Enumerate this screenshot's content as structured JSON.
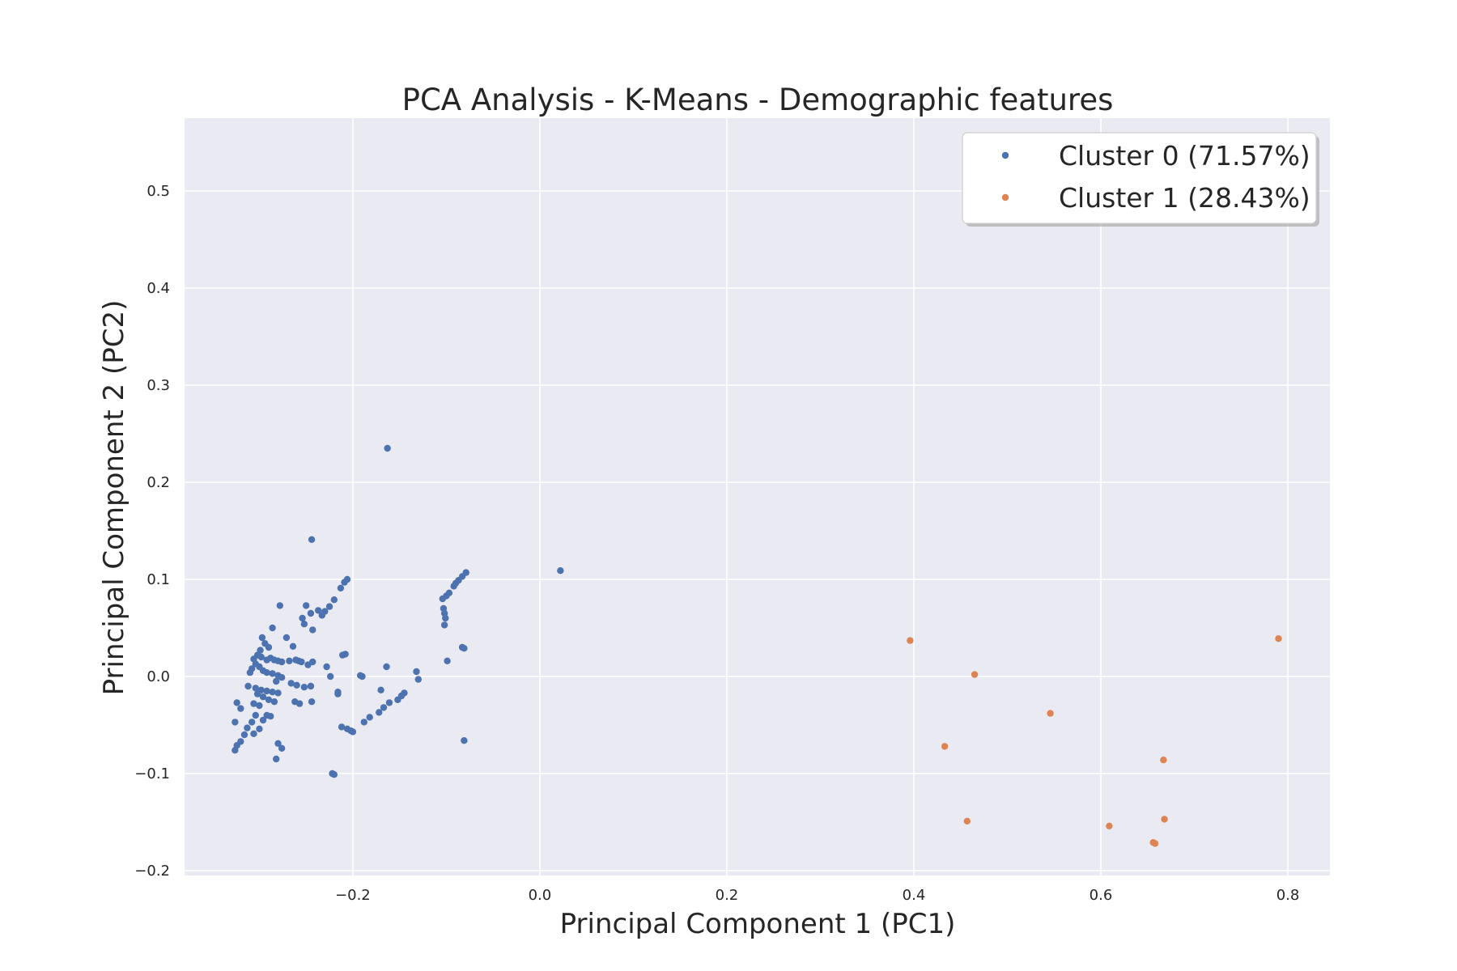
{
  "chart_data": {
    "type": "scatter",
    "title": "PCA Analysis - K-Means - Demographic features",
    "xlabel": "Principal Component 1 (PC1)",
    "ylabel": "Principal Component 2 (PC2)",
    "xlim": [
      -0.38,
      0.845
    ],
    "ylim": [
      -0.205,
      0.575
    ],
    "xticks": [
      -0.2,
      0.0,
      0.2,
      0.4,
      0.6,
      0.8
    ],
    "xtick_labels": [
      "−0.2",
      "0.0",
      "0.2",
      "0.4",
      "0.6",
      "0.8"
    ],
    "yticks": [
      -0.2,
      -0.1,
      0.0,
      0.1,
      0.2,
      0.3,
      0.4,
      0.5
    ],
    "ytick_labels": [
      "−0.2",
      "−0.1",
      "0.0",
      "0.1",
      "0.2",
      "0.3",
      "0.4",
      "0.5"
    ],
    "grid": true,
    "legend_position": "top-right",
    "series": [
      {
        "name": "Cluster 0 (71.57%)",
        "color": "#4c72b0",
        "points": [
          [
            -0.163,
            0.235
          ],
          [
            -0.244,
            0.141
          ],
          [
            0.022,
            0.109
          ],
          [
            -0.206,
            0.1
          ],
          [
            -0.209,
            0.097
          ],
          [
            -0.213,
            0.091
          ],
          [
            -0.22,
            0.079
          ],
          [
            -0.225,
            0.072
          ],
          [
            -0.23,
            0.067
          ],
          [
            -0.233,
            0.063
          ],
          [
            -0.237,
            0.068
          ],
          [
            -0.245,
            0.065
          ],
          [
            -0.25,
            0.073
          ],
          [
            -0.254,
            0.06
          ],
          [
            -0.252,
            0.054
          ],
          [
            -0.243,
            0.048
          ],
          [
            -0.278,
            0.073
          ],
          [
            -0.286,
            0.05
          ],
          [
            -0.271,
            0.04
          ],
          [
            -0.297,
            0.04
          ],
          [
            -0.294,
            0.034
          ],
          [
            -0.29,
            0.03
          ],
          [
            -0.299,
            0.027
          ],
          [
            -0.302,
            0.022
          ],
          [
            -0.298,
            0.02
          ],
          [
            -0.306,
            0.018
          ],
          [
            -0.292,
            0.017
          ],
          [
            -0.288,
            0.019
          ],
          [
            -0.284,
            0.017
          ],
          [
            -0.28,
            0.016
          ],
          [
            -0.276,
            0.015
          ],
          [
            -0.304,
            0.013
          ],
          [
            -0.3,
            0.01
          ],
          [
            -0.308,
            0.008
          ],
          [
            -0.31,
            0.004
          ],
          [
            -0.296,
            0.006
          ],
          [
            -0.292,
            0.004
          ],
          [
            -0.286,
            0.003
          ],
          [
            -0.28,
            0.001
          ],
          [
            -0.276,
            -0.001
          ],
          [
            -0.268,
            0.016
          ],
          [
            -0.261,
            0.017
          ],
          [
            -0.255,
            0.015
          ],
          [
            -0.248,
            0.012
          ],
          [
            -0.243,
            0.015
          ],
          [
            -0.264,
            0.031
          ],
          [
            -0.258,
            0.016
          ],
          [
            -0.282,
            -0.005
          ],
          [
            -0.312,
            -0.01
          ],
          [
            -0.304,
            -0.012
          ],
          [
            -0.298,
            -0.014
          ],
          [
            -0.292,
            -0.015
          ],
          [
            -0.286,
            -0.016
          ],
          [
            -0.28,
            -0.017
          ],
          [
            -0.302,
            -0.018
          ],
          [
            -0.296,
            -0.021
          ],
          [
            -0.29,
            -0.024
          ],
          [
            -0.284,
            -0.026
          ],
          [
            -0.3,
            -0.03
          ],
          [
            -0.306,
            -0.028
          ],
          [
            -0.266,
            -0.007
          ],
          [
            -0.26,
            -0.009
          ],
          [
            -0.252,
            -0.011
          ],
          [
            -0.245,
            -0.01
          ],
          [
            -0.262,
            -0.026
          ],
          [
            -0.257,
            -0.028
          ],
          [
            -0.244,
            -0.026
          ],
          [
            -0.292,
            -0.04
          ],
          [
            -0.296,
            -0.045
          ],
          [
            -0.304,
            -0.04
          ],
          [
            -0.308,
            -0.047
          ],
          [
            -0.313,
            -0.053
          ],
          [
            -0.316,
            -0.06
          ],
          [
            -0.3,
            -0.054
          ],
          [
            -0.288,
            -0.041
          ],
          [
            -0.32,
            -0.033
          ],
          [
            -0.324,
            -0.027
          ],
          [
            -0.326,
            -0.047
          ],
          [
            -0.32,
            -0.067
          ],
          [
            -0.324,
            -0.071
          ],
          [
            -0.326,
            -0.076
          ],
          [
            -0.306,
            -0.059
          ],
          [
            -0.282,
            -0.085
          ],
          [
            -0.276,
            -0.074
          ],
          [
            -0.28,
            -0.069
          ],
          [
            -0.228,
            0.01
          ],
          [
            -0.224,
            0.0
          ],
          [
            -0.211,
            0.022
          ],
          [
            -0.208,
            0.023
          ],
          [
            -0.192,
            0.001
          ],
          [
            -0.19,
            0.0
          ],
          [
            -0.216,
            -0.018
          ],
          [
            -0.212,
            -0.052
          ],
          [
            -0.206,
            -0.054
          ],
          [
            -0.202,
            -0.056
          ],
          [
            -0.2,
            -0.057
          ],
          [
            -0.188,
            -0.047
          ],
          [
            -0.182,
            -0.042
          ],
          [
            -0.172,
            -0.037
          ],
          [
            -0.17,
            -0.014
          ],
          [
            -0.167,
            -0.032
          ],
          [
            -0.164,
            0.01
          ],
          [
            -0.161,
            -0.027
          ],
          [
            -0.152,
            -0.024
          ],
          [
            -0.148,
            -0.02
          ],
          [
            -0.145,
            -0.017
          ],
          [
            -0.132,
            0.005
          ],
          [
            -0.13,
            -0.003
          ],
          [
            -0.222,
            -0.1
          ],
          [
            -0.22,
            -0.101
          ],
          [
            -0.104,
            0.08
          ],
          [
            -0.1,
            0.083
          ],
          [
            -0.097,
            0.086
          ],
          [
            -0.092,
            0.093
          ],
          [
            -0.09,
            0.096
          ],
          [
            -0.087,
            0.099
          ],
          [
            -0.083,
            0.103
          ],
          [
            -0.079,
            0.107
          ],
          [
            -0.103,
            0.07
          ],
          [
            -0.102,
            0.065
          ],
          [
            -0.101,
            0.06
          ],
          [
            -0.102,
            0.053
          ],
          [
            -0.099,
            0.016
          ],
          [
            -0.083,
            0.03
          ],
          [
            -0.081,
            0.029
          ],
          [
            -0.081,
            -0.066
          ],
          [
            -0.216,
            -0.016
          ]
        ]
      },
      {
        "name": "Cluster 1 (28.43%)",
        "color": "#dd8452",
        "points": [
          [
            0.396,
            0.037
          ],
          [
            0.79,
            0.039
          ],
          [
            0.465,
            0.002
          ],
          [
            0.546,
            -0.038
          ],
          [
            0.433,
            -0.072
          ],
          [
            0.667,
            -0.086
          ],
          [
            0.457,
            -0.149
          ],
          [
            0.668,
            -0.147
          ],
          [
            0.609,
            -0.154
          ],
          [
            0.656,
            -0.171
          ],
          [
            0.658,
            -0.172
          ]
        ]
      }
    ]
  }
}
